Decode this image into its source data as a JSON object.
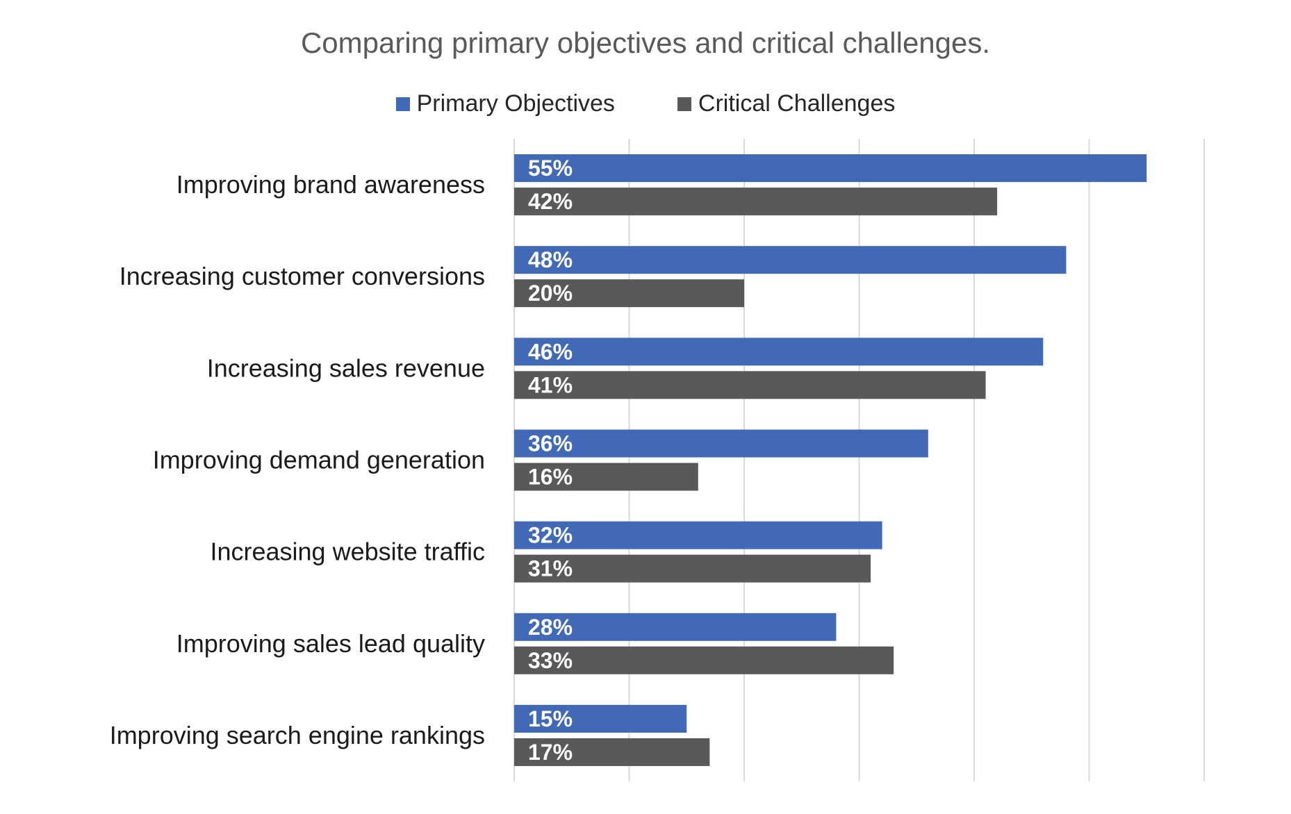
{
  "colors": {
    "primary": "#4169B6",
    "challenges": "#595959",
    "grid": "#d9d9d9",
    "label_text": "#ffffff",
    "category_text": "#1a1a1a"
  },
  "chart_data": {
    "type": "bar",
    "orientation": "horizontal",
    "title": "Comparing primary objectives and critical challenges.",
    "legend_position": "top",
    "grid": true,
    "xlim": [
      0,
      60
    ],
    "categories": [
      "Improving brand awareness",
      "Increasing customer conversions",
      "Increasing sales revenue",
      "Improving demand generation",
      "Increasing website traffic",
      "Improving sales lead quality",
      "Improving search engine rankings"
    ],
    "series": [
      {
        "name": "Primary Objectives",
        "color": "#4169B6",
        "values": [
          55,
          48,
          46,
          36,
          32,
          28,
          15
        ],
        "labels": [
          "55%",
          "48%",
          "46%",
          "36%",
          "32%",
          "28%",
          "15%"
        ]
      },
      {
        "name": "Critical Challenges",
        "color": "#595959",
        "values": [
          42,
          20,
          41,
          16,
          31,
          33,
          17
        ],
        "labels": [
          "42%",
          "20%",
          "41%",
          "16%",
          "31%",
          "33%",
          "17%"
        ]
      }
    ]
  }
}
